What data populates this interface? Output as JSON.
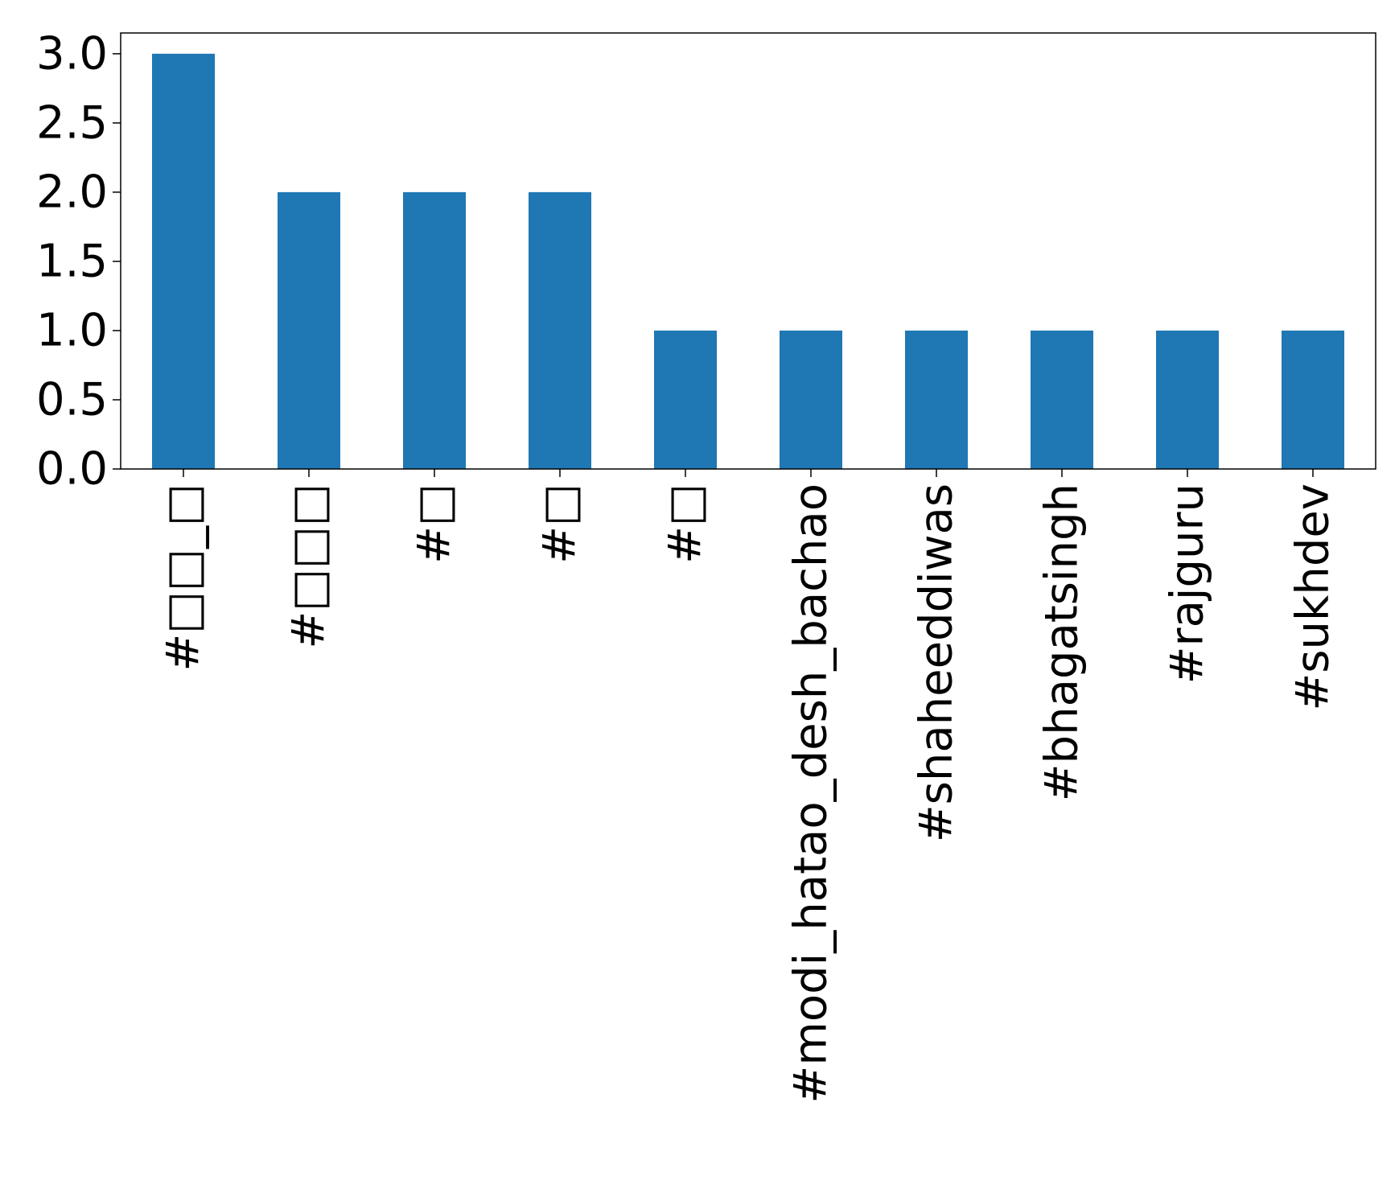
{
  "chart_data": {
    "type": "bar",
    "categories": [
      "#□□_□",
      "#□□□",
      "#□",
      "#□",
      "#□",
      "#modi_hatao_desh_bachao",
      "#shaheeddiwas",
      "#bhagatsingh",
      "#rajguru",
      "#sukhdev"
    ],
    "values": [
      3,
      2,
      2,
      2,
      1,
      1,
      1,
      1,
      1,
      1
    ],
    "ylim": [
      0,
      3.15
    ],
    "yticks": [
      "0.0",
      "0.5",
      "1.0",
      "1.5",
      "2.0",
      "2.5",
      "3.0"
    ],
    "bar_color": "#1f77b4",
    "grid": false,
    "legend": "none"
  }
}
